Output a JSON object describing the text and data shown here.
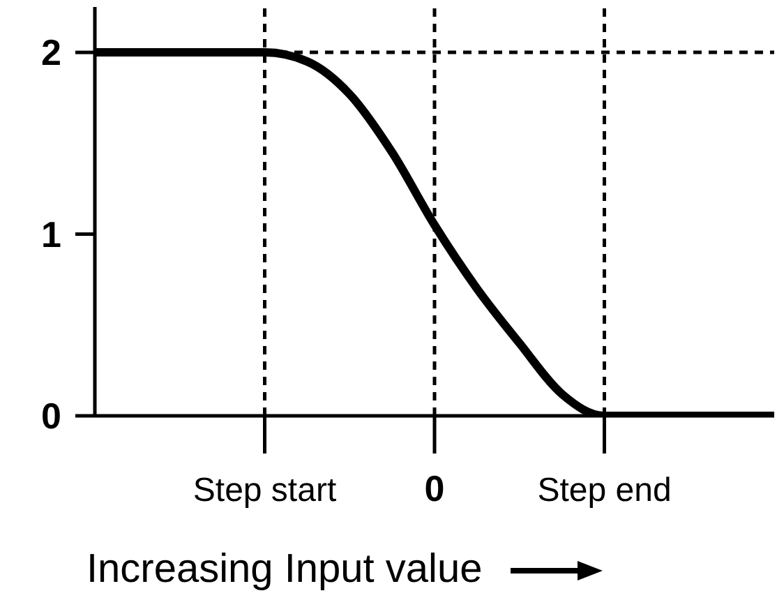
{
  "chart_data": {
    "type": "line",
    "xlabel": "Increasing Input value",
    "categories": [
      null,
      null,
      null,
      null,
      "Step start",
      null,
      null,
      null,
      "0",
      null,
      null,
      null,
      "Step end",
      null,
      null,
      null,
      null
    ],
    "series": [
      {
        "color": "#000000",
        "values": [
          2,
          2,
          2,
          2,
          2,
          1.95,
          1.77,
          1.45,
          1.05,
          0.7,
          0.4,
          0.12,
          0,
          0,
          0,
          0,
          0
        ]
      }
    ],
    "ylim": [
      0,
      2.25
    ],
    "yticks": [
      0,
      1,
      2
    ],
    "grid": false,
    "marker": "none",
    "line_style": "solid",
    "ref_lines": [
      {
        "axis": "x",
        "value": "Step start",
        "line_style": "dashed"
      },
      {
        "axis": "x",
        "value": "0",
        "line_style": "dashed"
      },
      {
        "axis": "x",
        "value": "Step end",
        "line_style": "dashed"
      },
      {
        "axis": "y",
        "value": 2,
        "line_style": "dashed"
      }
    ]
  }
}
